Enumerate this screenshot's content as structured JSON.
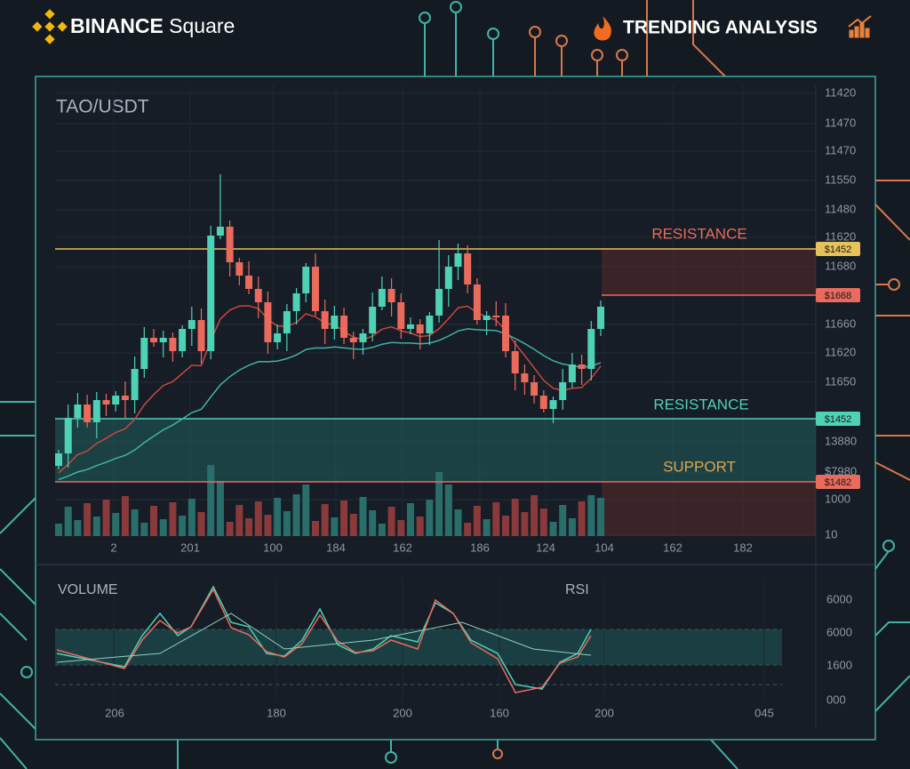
{
  "header": {
    "brand": "BINANCE",
    "product": "Square",
    "badge": "TRENDING ANALYSIS"
  },
  "chart": {
    "pair": "TAO/USDT",
    "zone_labels": [
      "RESISTANCE",
      "RESISTANCE",
      "SUPPORT"
    ],
    "price_tags": [
      "$1452",
      "$1668",
      "$1452",
      "$1482"
    ],
    "y_axis_labels": [
      "11420",
      "11470",
      "11470",
      "11550",
      "11480",
      "11620",
      "11680",
      "11660",
      "11620",
      "11650",
      "13880",
      "$7980",
      "1000",
      "10"
    ],
    "x_axis_labels": [
      "2",
      "201",
      "100",
      "184",
      "162",
      "186",
      "124",
      "104",
      "162",
      "182"
    ]
  },
  "lower_panel": {
    "left_title": "VOLUME",
    "right_title": "RSI",
    "y_axis_labels": [
      "6000",
      "6000",
      "1600",
      "000"
    ],
    "x_axis_labels": [
      "206",
      "180",
      "200",
      "160",
      "200",
      "045"
    ]
  }
}
